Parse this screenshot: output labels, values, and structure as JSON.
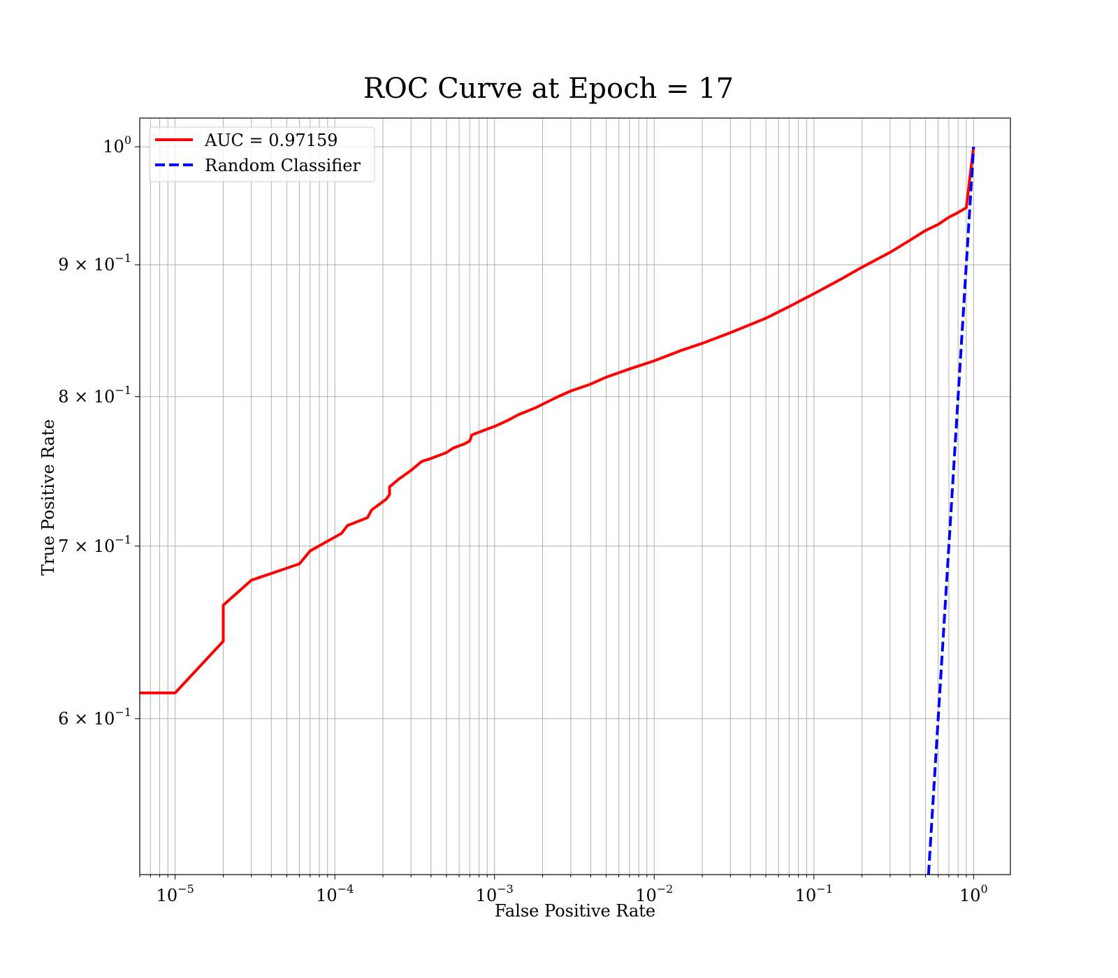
{
  "chart_data": {
    "type": "line",
    "title": "ROC Curve at Epoch = 17",
    "xlabel": "False Positive Rate",
    "ylabel": "True Positive Rate",
    "xscale": "log",
    "yscale": "log",
    "xlim": [
      6e-06,
      1.7
    ],
    "ylim": [
      0.522,
      1.026
    ],
    "grid": true,
    "grid_which": "both",
    "legend_position": "top-left",
    "x_ticks": [
      {
        "value": 1e-05,
        "base": "10",
        "exp": "−5"
      },
      {
        "value": 0.0001,
        "base": "10",
        "exp": "−4"
      },
      {
        "value": 0.001,
        "base": "10",
        "exp": "−3"
      },
      {
        "value": 0.01,
        "base": "10",
        "exp": "−2"
      },
      {
        "value": 0.1,
        "base": "10",
        "exp": "−1"
      },
      {
        "value": 1,
        "base": "10",
        "exp": "0"
      }
    ],
    "y_ticks": [
      {
        "value": 1.0,
        "base": "10",
        "exp": "0"
      },
      {
        "value": 0.9,
        "base": "9 × 10",
        "exp": "−1"
      },
      {
        "value": 0.8,
        "base": "8 × 10",
        "exp": "−1"
      },
      {
        "value": 0.7,
        "base": "7 × 10",
        "exp": "−1"
      },
      {
        "value": 0.6,
        "base": "6 × 10",
        "exp": "−1"
      }
    ],
    "series": [
      {
        "name": "AUC = 0.97159",
        "color": "#ff0000",
        "style": "solid",
        "points": [
          [
            6e-06,
            0.614
          ],
          [
            1e-05,
            0.614
          ],
          [
            2e-05,
            0.643
          ],
          [
            2e-05,
            0.664
          ],
          [
            3e-05,
            0.679
          ],
          [
            6e-05,
            0.689
          ],
          [
            7e-05,
            0.697
          ],
          [
            0.00011,
            0.708
          ],
          [
            0.00012,
            0.713
          ],
          [
            0.00016,
            0.718
          ],
          [
            0.00017,
            0.723
          ],
          [
            0.00021,
            0.73
          ],
          [
            0.00022,
            0.733
          ],
          [
            0.00022,
            0.738
          ],
          [
            0.00025,
            0.743
          ],
          [
            0.0003,
            0.749
          ],
          [
            0.00035,
            0.755
          ],
          [
            0.0004,
            0.757
          ],
          [
            0.0005,
            0.761
          ],
          [
            0.00055,
            0.764
          ],
          [
            0.00065,
            0.767
          ],
          [
            0.0007,
            0.769
          ],
          [
            0.00072,
            0.773
          ],
          [
            0.0008,
            0.775
          ],
          [
            0.001,
            0.779
          ],
          [
            0.0012,
            0.783
          ],
          [
            0.0014,
            0.787
          ],
          [
            0.0018,
            0.792
          ],
          [
            0.0025,
            0.8
          ],
          [
            0.003,
            0.804
          ],
          [
            0.004,
            0.809
          ],
          [
            0.005,
            0.814
          ],
          [
            0.007,
            0.82
          ],
          [
            0.01,
            0.826
          ],
          [
            0.015,
            0.834
          ],
          [
            0.02,
            0.839
          ],
          [
            0.03,
            0.847
          ],
          [
            0.05,
            0.858
          ],
          [
            0.07,
            0.867
          ],
          [
            0.1,
            0.877
          ],
          [
            0.15,
            0.889
          ],
          [
            0.2,
            0.898
          ],
          [
            0.3,
            0.91
          ],
          [
            0.4,
            0.92
          ],
          [
            0.5,
            0.928
          ],
          [
            0.6,
            0.933
          ],
          [
            0.7,
            0.939
          ],
          [
            0.8,
            0.943
          ],
          [
            0.9,
            0.947
          ],
          [
            1.0,
            1.0
          ]
        ]
      },
      {
        "name": "Random Classifier",
        "color": "#0000ff",
        "style": "dashed",
        "points": [
          [
            0.522,
            0.522
          ],
          [
            1.0,
            1.0
          ]
        ]
      }
    ]
  }
}
